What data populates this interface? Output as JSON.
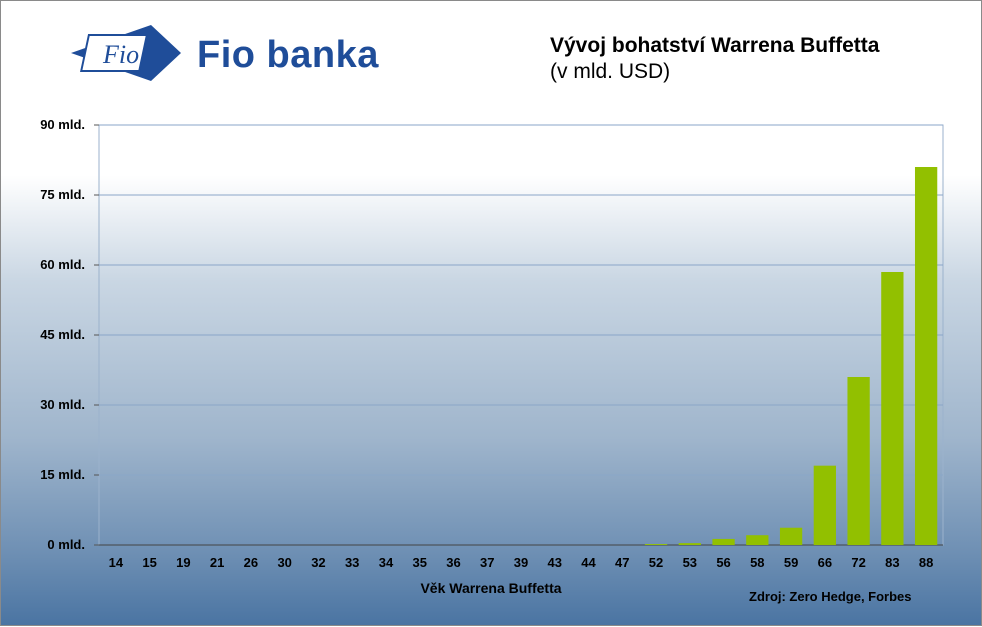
{
  "header": {
    "logo_mark_text": "Fio",
    "brand": "Fio banka",
    "title": "Vývoj bohatství Warrena Buffetta",
    "subtitle": "(v mld. USD)",
    "source": "Zdroj: Zero Hedge, Forbes"
  },
  "colors": {
    "bar": "#92c000",
    "brand": "#1f4d99",
    "gridline": "#8aa6c8"
  },
  "chart_data": {
    "type": "bar",
    "xlabel": "Věk Warrena Buffetta",
    "ylabel": "",
    "ylim": [
      0,
      90
    ],
    "yticks": [
      0,
      15,
      30,
      45,
      60,
      75,
      90
    ],
    "ytick_labels": [
      "0 mld.",
      "15 mld.",
      "30 mld.",
      "45 mld.",
      "60 mld.",
      "75 mld.",
      "90 mld."
    ],
    "categories": [
      "14",
      "15",
      "19",
      "21",
      "26",
      "30",
      "32",
      "33",
      "34",
      "35",
      "36",
      "37",
      "39",
      "43",
      "44",
      "47",
      "52",
      "53",
      "56",
      "58",
      "59",
      "66",
      "72",
      "83",
      "88"
    ],
    "values": [
      0,
      0,
      0,
      0,
      0,
      0,
      0,
      0,
      0,
      0,
      0,
      0,
      0,
      0,
      0,
      0,
      0.2,
      0.4,
      1.3,
      2.1,
      3.7,
      17,
      36,
      58.5,
      81
    ],
    "grid": true,
    "legend": "none"
  }
}
